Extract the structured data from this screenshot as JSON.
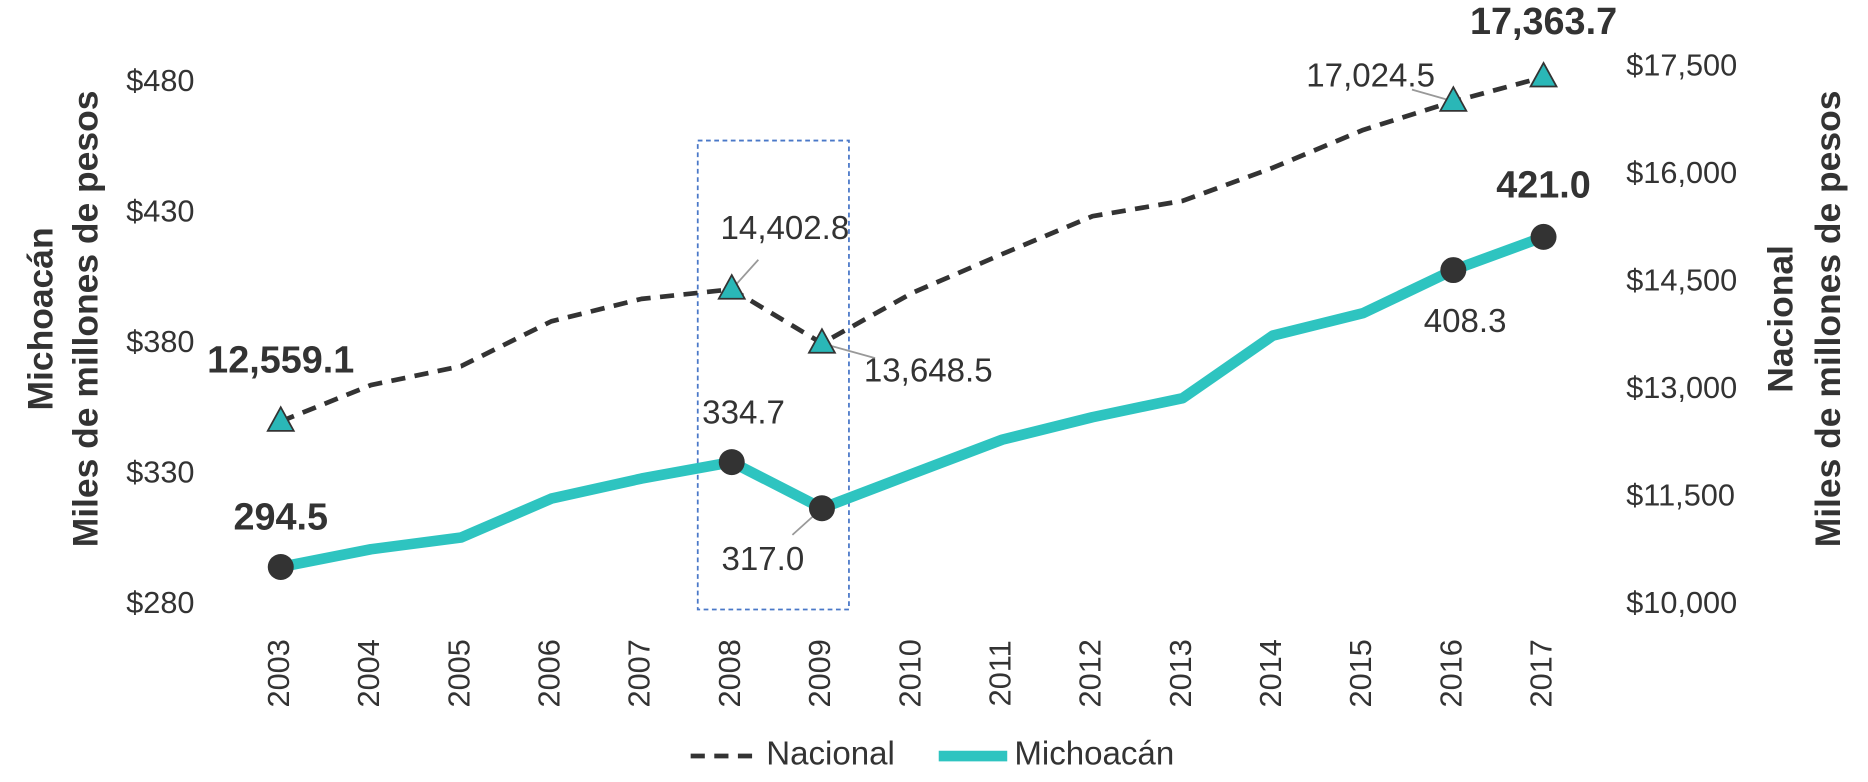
{
  "chart_data": {
    "type": "line",
    "categories": [
      "2003",
      "2004",
      "2005",
      "2006",
      "2007",
      "2008",
      "2009",
      "2010",
      "2011",
      "2012",
      "2013",
      "2014",
      "2015",
      "2016",
      "2017"
    ],
    "y_label": [
      "Michoacán",
      "Miles de millones de pesos"
    ],
    "y2_label": [
      "Nacional",
      "Miles de millones de pesos"
    ],
    "ylim": [
      280,
      486
    ],
    "yticks": [
      {
        "value": 280,
        "label": "$280"
      },
      {
        "value": 330,
        "label": "$330"
      },
      {
        "value": 380,
        "label": "$380"
      },
      {
        "value": 430,
        "label": "$430"
      },
      {
        "value": 480,
        "label": "$480"
      }
    ],
    "y2lim": [
      10000,
      17500
    ],
    "y2ticks": [
      {
        "value": 10000,
        "label": "$10,000"
      },
      {
        "value": 11500,
        "label": "$11,500"
      },
      {
        "value": 13000,
        "label": "$13,000"
      },
      {
        "value": 14500,
        "label": "$14,500"
      },
      {
        "value": 16000,
        "label": "$16,000"
      },
      {
        "value": 17500,
        "label": "$17,500"
      }
    ],
    "legend": "bottom",
    "series": [
      {
        "name": "Nacional",
        "color": "#333333",
        "marker_color": "#2ab7b7",
        "dashed": true,
        "axis": "y2",
        "values": [
          12559.1,
          13066,
          13330,
          13956,
          14269,
          14402.8,
          13648.5,
          14351,
          14895,
          15423,
          15637,
          16099,
          16626,
          17024.5,
          17363.7
        ],
        "value_labels": [
          "12,559.1",
          null,
          null,
          null,
          null,
          "14,402.8",
          "13,648.5",
          null,
          null,
          null,
          null,
          null,
          null,
          "17,024.5",
          "17,363.7"
        ]
      },
      {
        "name": "Michoacán",
        "color": "#2ec4c0",
        "marker_color": "#333333",
        "dashed": false,
        "values": [
          294.5,
          301.3,
          305.8,
          320.7,
          328.4,
          334.7,
          317.0,
          330.2,
          343.3,
          351.9,
          359.2,
          383.2,
          391.8,
          408.3,
          421.0
        ],
        "value_labels": [
          "294.5",
          null,
          null,
          null,
          null,
          "334.7",
          "317.0",
          null,
          null,
          null,
          null,
          null,
          null,
          "408.3",
          "421.0"
        ]
      }
    ]
  }
}
